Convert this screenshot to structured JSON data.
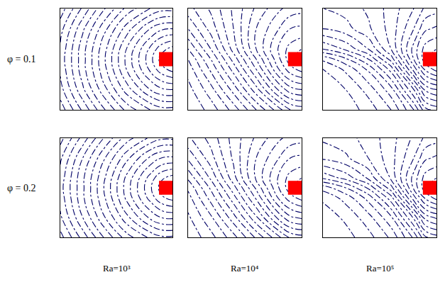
{
  "row_labels": [
    "φ = 0.1",
    "φ = 0.2"
  ],
  "column_labels": [
    "Ra=10³",
    "Ra=10⁴",
    "Ra=10⁵"
  ],
  "chart_data": [
    {
      "type": "contour",
      "xlim": [
        0,
        1
      ],
      "ylim": [
        0,
        1
      ],
      "tick_labels": false,
      "x": [
        0,
        0.2,
        0.4,
        0.6,
        0.8,
        0.9,
        1.0
      ],
      "y": [
        0,
        0.2,
        0.4,
        0.5,
        0.6,
        0.8,
        1.0
      ],
      "levels": [
        0.1,
        0.15,
        0.2,
        0.25,
        0.3,
        0.35,
        0.4,
        0.45,
        0.5,
        0.55,
        0.6,
        0.65,
        0.7,
        0.75,
        0.8,
        0.85,
        0.9,
        0.95
      ],
      "color": "#000066",
      "line_style": "dashdot",
      "heater": {
        "x": [
          0.88,
          1.0
        ],
        "y": [
          0.43,
          0.57
        ],
        "color": "#ff0000"
      },
      "values": [
        [
          0.07,
          0.21,
          0.35,
          0.47,
          0.55,
          0.58,
          0.58
        ],
        [
          0.13,
          0.29,
          0.44,
          0.58,
          0.7,
          0.74,
          0.75
        ],
        [
          0.16,
          0.33,
          0.49,
          0.66,
          0.81,
          0.88,
          0.92
        ],
        [
          0.17,
          0.33,
          0.5,
          0.67,
          0.83,
          0.92,
          1.0
        ],
        [
          0.16,
          0.33,
          0.49,
          0.66,
          0.81,
          0.88,
          0.92
        ],
        [
          0.13,
          0.29,
          0.44,
          0.58,
          0.7,
          0.74,
          0.75
        ],
        [
          0.07,
          0.21,
          0.35,
          0.47,
          0.55,
          0.58,
          0.58
        ]
      ]
    },
    {
      "type": "contour",
      "xlim": [
        0,
        1
      ],
      "ylim": [
        0,
        1
      ],
      "tick_labels": false,
      "x": [
        0,
        0.2,
        0.4,
        0.6,
        0.8,
        0.9,
        1.0
      ],
      "y": [
        0,
        0.2,
        0.4,
        0.5,
        0.6,
        0.8,
        1.0
      ],
      "levels": [
        0.1,
        0.15,
        0.2,
        0.25,
        0.3,
        0.35,
        0.4,
        0.45,
        0.5,
        0.55,
        0.6,
        0.65,
        0.7,
        0.75,
        0.8,
        0.85,
        0.9,
        0.95
      ],
      "color": "#000066",
      "line_style": "dashdot",
      "heater": {
        "x": [
          0.88,
          1.0
        ],
        "y": [
          0.43,
          0.57
        ],
        "color": "#ff0000"
      },
      "values": [
        [
          0.05,
          0.12,
          0.22,
          0.35,
          0.48,
          0.55,
          0.57
        ],
        [
          0.08,
          0.18,
          0.32,
          0.48,
          0.66,
          0.73,
          0.75
        ],
        [
          0.12,
          0.26,
          0.42,
          0.6,
          0.8,
          0.88,
          0.92
        ],
        [
          0.15,
          0.3,
          0.47,
          0.65,
          0.84,
          0.93,
          1.0
        ],
        [
          0.2,
          0.35,
          0.52,
          0.7,
          0.86,
          0.92,
          0.95
        ],
        [
          0.3,
          0.42,
          0.55,
          0.7,
          0.8,
          0.85,
          0.86
        ],
        [
          0.38,
          0.46,
          0.56,
          0.66,
          0.74,
          0.77,
          0.78
        ]
      ]
    },
    {
      "type": "contour",
      "xlim": [
        0,
        1
      ],
      "ylim": [
        0,
        1
      ],
      "tick_labels": false,
      "x": [
        0,
        0.2,
        0.4,
        0.6,
        0.8,
        0.9,
        1.0
      ],
      "y": [
        0,
        0.2,
        0.4,
        0.5,
        0.6,
        0.8,
        1.0
      ],
      "levels": [
        0.1,
        0.15,
        0.2,
        0.25,
        0.3,
        0.35,
        0.4,
        0.45,
        0.5,
        0.55,
        0.6,
        0.65,
        0.7,
        0.75,
        0.8,
        0.85,
        0.9,
        0.95
      ],
      "color": "#000066",
      "line_style": "dashdot",
      "heater": {
        "x": [
          0.88,
          1.0
        ],
        "y": [
          0.43,
          0.57
        ],
        "color": "#ff0000"
      },
      "values": [
        [
          0.04,
          0.07,
          0.12,
          0.2,
          0.35,
          0.48,
          0.52
        ],
        [
          0.06,
          0.1,
          0.17,
          0.28,
          0.5,
          0.66,
          0.7
        ],
        [
          0.1,
          0.16,
          0.26,
          0.42,
          0.72,
          0.86,
          0.92
        ],
        [
          0.16,
          0.24,
          0.35,
          0.52,
          0.8,
          0.93,
          1.0
        ],
        [
          0.3,
          0.36,
          0.45,
          0.6,
          0.82,
          0.92,
          0.95
        ],
        [
          0.45,
          0.48,
          0.54,
          0.62,
          0.75,
          0.84,
          0.86
        ],
        [
          0.5,
          0.52,
          0.56,
          0.62,
          0.7,
          0.76,
          0.78
        ]
      ]
    },
    {
      "type": "contour",
      "xlim": [
        0,
        1
      ],
      "ylim": [
        0,
        1
      ],
      "tick_labels": false,
      "x": [
        0,
        0.2,
        0.4,
        0.6,
        0.8,
        0.9,
        1.0
      ],
      "y": [
        0,
        0.2,
        0.4,
        0.5,
        0.6,
        0.8,
        1.0
      ],
      "levels": [
        0.1,
        0.15,
        0.2,
        0.25,
        0.3,
        0.35,
        0.4,
        0.45,
        0.5,
        0.55,
        0.6,
        0.65,
        0.7,
        0.75,
        0.8,
        0.85,
        0.9,
        0.95
      ],
      "color": "#000066",
      "line_style": "dashdot",
      "heater": {
        "x": [
          0.88,
          1.0
        ],
        "y": [
          0.43,
          0.57
        ],
        "color": "#ff0000"
      },
      "values": [
        [
          0.08,
          0.22,
          0.36,
          0.48,
          0.56,
          0.59,
          0.59
        ],
        [
          0.14,
          0.3,
          0.45,
          0.59,
          0.71,
          0.75,
          0.76
        ],
        [
          0.17,
          0.34,
          0.5,
          0.67,
          0.82,
          0.89,
          0.92
        ],
        [
          0.18,
          0.34,
          0.51,
          0.68,
          0.84,
          0.92,
          1.0
        ],
        [
          0.17,
          0.34,
          0.5,
          0.67,
          0.82,
          0.89,
          0.92
        ],
        [
          0.14,
          0.3,
          0.45,
          0.59,
          0.71,
          0.75,
          0.76
        ],
        [
          0.08,
          0.22,
          0.36,
          0.48,
          0.56,
          0.59,
          0.59
        ]
      ]
    },
    {
      "type": "contour",
      "xlim": [
        0,
        1
      ],
      "ylim": [
        0,
        1
      ],
      "tick_labels": false,
      "x": [
        0,
        0.2,
        0.4,
        0.6,
        0.8,
        0.9,
        1.0
      ],
      "y": [
        0,
        0.2,
        0.4,
        0.5,
        0.6,
        0.8,
        1.0
      ],
      "levels": [
        0.1,
        0.15,
        0.2,
        0.25,
        0.3,
        0.35,
        0.4,
        0.45,
        0.5,
        0.55,
        0.6,
        0.65,
        0.7,
        0.75,
        0.8,
        0.85,
        0.9,
        0.95
      ],
      "color": "#000066",
      "line_style": "dashdot",
      "heater": {
        "x": [
          0.88,
          1.0
        ],
        "y": [
          0.43,
          0.57
        ],
        "color": "#ff0000"
      },
      "values": [
        [
          0.06,
          0.13,
          0.23,
          0.36,
          0.49,
          0.56,
          0.58
        ],
        [
          0.09,
          0.19,
          0.33,
          0.49,
          0.67,
          0.74,
          0.76
        ],
        [
          0.13,
          0.27,
          0.43,
          0.61,
          0.81,
          0.88,
          0.92
        ],
        [
          0.16,
          0.31,
          0.48,
          0.66,
          0.85,
          0.93,
          1.0
        ],
        [
          0.21,
          0.36,
          0.53,
          0.71,
          0.86,
          0.92,
          0.95
        ],
        [
          0.31,
          0.43,
          0.56,
          0.7,
          0.8,
          0.85,
          0.86
        ],
        [
          0.39,
          0.47,
          0.57,
          0.66,
          0.74,
          0.77,
          0.78
        ]
      ]
    },
    {
      "type": "contour",
      "xlim": [
        0,
        1
      ],
      "ylim": [
        0,
        1
      ],
      "tick_labels": false,
      "x": [
        0,
        0.2,
        0.4,
        0.6,
        0.8,
        0.9,
        1.0
      ],
      "y": [
        0,
        0.2,
        0.4,
        0.5,
        0.6,
        0.8,
        1.0
      ],
      "levels": [
        0.1,
        0.15,
        0.2,
        0.25,
        0.3,
        0.35,
        0.4,
        0.45,
        0.5,
        0.55,
        0.6,
        0.65,
        0.7,
        0.75,
        0.8,
        0.85,
        0.9,
        0.95
      ],
      "color": "#000066",
      "line_style": "dashdot",
      "heater": {
        "x": [
          0.88,
          1.0
        ],
        "y": [
          0.43,
          0.57
        ],
        "color": "#ff0000"
      },
      "values": [
        [
          0.05,
          0.08,
          0.13,
          0.21,
          0.36,
          0.49,
          0.53
        ],
        [
          0.07,
          0.11,
          0.18,
          0.29,
          0.51,
          0.67,
          0.71
        ],
        [
          0.11,
          0.17,
          0.27,
          0.43,
          0.73,
          0.86,
          0.92
        ],
        [
          0.17,
          0.25,
          0.36,
          0.53,
          0.81,
          0.93,
          1.0
        ],
        [
          0.31,
          0.37,
          0.46,
          0.61,
          0.82,
          0.92,
          0.95
        ],
        [
          0.46,
          0.49,
          0.55,
          0.63,
          0.75,
          0.84,
          0.86
        ],
        [
          0.51,
          0.53,
          0.57,
          0.63,
          0.71,
          0.76,
          0.78
        ]
      ]
    }
  ]
}
